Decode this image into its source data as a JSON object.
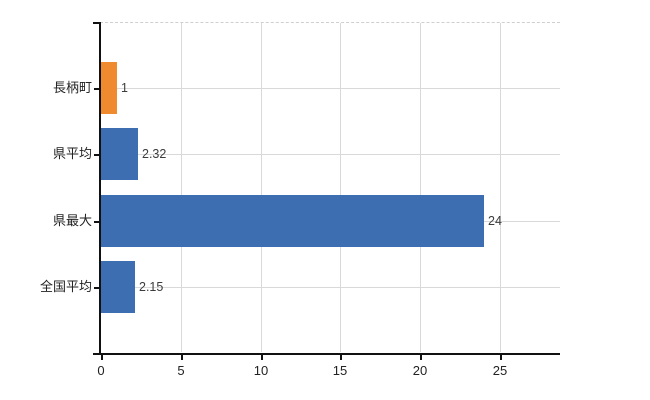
{
  "chart_data": {
    "type": "bar",
    "orientation": "horizontal",
    "title": "",
    "categories": [
      "長柄町",
      "県平均",
      "県最大",
      "全国平均"
    ],
    "values": [
      1,
      2.32,
      24,
      2.15
    ],
    "value_labels": [
      "1",
      "2.32",
      "24",
      "2.15"
    ],
    "bar_colors": [
      "#ef8b2e",
      "#3e6eb2",
      "#3e6eb2",
      "#3e6eb2"
    ],
    "x_tick_values": [
      0,
      5,
      10,
      15,
      20,
      25
    ],
    "x_tick_labels": [
      "0",
      "5",
      "10",
      "15",
      "20",
      "25"
    ],
    "xlim": [
      0,
      28.8
    ],
    "grid": true,
    "legend": false,
    "xlabel": "",
    "ylabel": "",
    "colors": {
      "highlight_bar": "#ef8b2e",
      "default_bar": "#3e6eb2",
      "gridline": "#d9d9d9",
      "axis": "#111111",
      "top_border": "#cfcfcf",
      "category_text": "#222222",
      "value_text": "#3c3c3c"
    }
  }
}
